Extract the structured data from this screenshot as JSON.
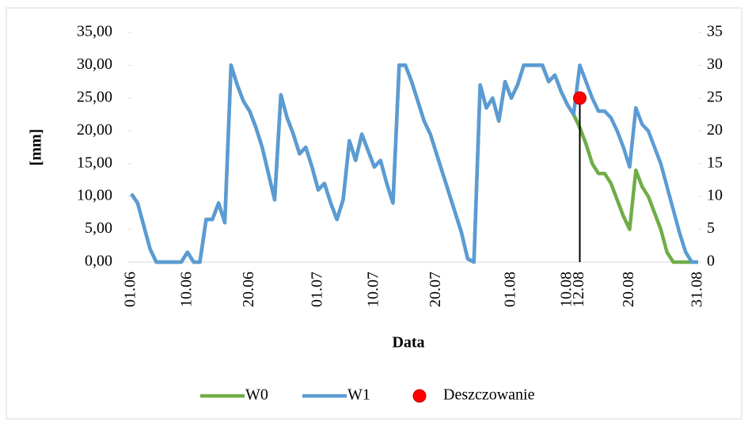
{
  "chart_data": {
    "type": "line",
    "ylabel": "[mm]",
    "xlabel": "Data",
    "categories": [
      "01.06",
      null,
      null,
      null,
      null,
      null,
      null,
      null,
      null,
      "10.06",
      null,
      null,
      null,
      null,
      null,
      null,
      null,
      null,
      null,
      "20.06",
      null,
      null,
      null,
      null,
      null,
      null,
      null,
      null,
      null,
      null,
      "01.07",
      null,
      null,
      null,
      null,
      null,
      null,
      null,
      null,
      "10.07",
      null,
      null,
      null,
      null,
      null,
      null,
      null,
      null,
      null,
      "20.07",
      null,
      null,
      null,
      null,
      null,
      null,
      null,
      null,
      null,
      null,
      null,
      "01.08",
      null,
      null,
      null,
      null,
      null,
      null,
      null,
      null,
      "10.08",
      null,
      "12.08",
      null,
      null,
      null,
      null,
      null,
      null,
      null,
      "20.08",
      null,
      null,
      null,
      null,
      null,
      null,
      null,
      null,
      null,
      null,
      "31.08"
    ],
    "series": [
      {
        "name": "W0",
        "color": "#70ad47",
        "values": [
          10.4,
          9,
          5.5,
          2,
          0,
          0,
          0,
          0,
          0,
          1.5,
          0,
          0,
          6.5,
          6.5,
          9,
          6,
          30,
          27,
          24.5,
          23,
          20.5,
          17.5,
          13.5,
          9.5,
          25.5,
          22,
          19.5,
          16.5,
          17.5,
          14.5,
          11,
          12,
          9,
          6.5,
          9.5,
          18.5,
          15.5,
          19.5,
          17,
          14.5,
          15.5,
          12,
          9,
          30,
          30,
          27.5,
          24.5,
          21.5,
          19.5,
          16.5,
          13.5,
          10.5,
          7.5,
          4.5,
          0.5,
          0,
          27,
          23.5,
          25,
          21.5,
          27.5,
          25,
          27,
          30,
          30,
          30,
          30,
          27.5,
          28.5,
          26,
          24,
          22.5,
          20.5,
          18,
          15,
          13.5,
          13.5,
          12,
          9.5,
          7,
          5,
          14,
          11.5,
          10,
          7.5,
          5,
          1.5,
          0,
          0,
          0,
          0,
          0
        ]
      },
      {
        "name": "W1",
        "color": "#5b9bd5",
        "values": [
          10.4,
          9,
          5.5,
          2,
          0,
          0,
          0,
          0,
          0,
          1.5,
          0,
          0,
          6.5,
          6.5,
          9,
          6,
          30,
          27,
          24.5,
          23,
          20.5,
          17.5,
          13.5,
          9.5,
          25.5,
          22,
          19.5,
          16.5,
          17.5,
          14.5,
          11,
          12,
          9,
          6.5,
          9.5,
          18.5,
          15.5,
          19.5,
          17,
          14.5,
          15.5,
          12,
          9,
          30,
          30,
          27.5,
          24.5,
          21.5,
          19.5,
          16.5,
          13.5,
          10.5,
          7.5,
          4.5,
          0.5,
          0,
          27,
          23.5,
          25,
          21.5,
          27.5,
          25,
          27,
          30,
          30,
          30,
          30,
          27.5,
          28.5,
          26,
          24,
          22.5,
          30,
          27.5,
          25,
          23,
          23,
          22,
          20,
          17.5,
          14.5,
          23.5,
          21,
          20,
          17.5,
          15,
          11.5,
          8,
          4.5,
          1.5,
          0,
          0
        ]
      },
      {
        "name": "Deszczowanie",
        "color": "#ff0000",
        "marker": "point",
        "values": [
          null,
          null,
          null,
          null,
          null,
          null,
          null,
          null,
          null,
          null,
          null,
          null,
          null,
          null,
          null,
          null,
          null,
          null,
          null,
          null,
          null,
          null,
          null,
          null,
          null,
          null,
          null,
          null,
          null,
          null,
          null,
          null,
          null,
          null,
          null,
          null,
          null,
          null,
          null,
          null,
          null,
          null,
          null,
          null,
          null,
          null,
          null,
          null,
          null,
          null,
          null,
          null,
          null,
          null,
          null,
          null,
          null,
          null,
          null,
          null,
          null,
          null,
          null,
          null,
          null,
          null,
          null,
          null,
          null,
          null,
          null,
          null,
          25,
          null,
          null,
          null,
          null,
          null,
          null,
          null,
          null,
          null,
          null,
          null,
          null,
          null,
          null,
          null,
          null,
          null,
          null,
          null
        ]
      }
    ],
    "ylim": [
      0,
      35
    ],
    "yticks": [
      {
        "value": 0,
        "label": "0,00"
      },
      {
        "value": 5,
        "label": "5,00"
      },
      {
        "value": 10,
        "label": "10,00"
      },
      {
        "value": 15,
        "label": "15,00"
      },
      {
        "value": 20,
        "label": "20,00"
      },
      {
        "value": 25,
        "label": "25,00"
      },
      {
        "value": 30,
        "label": "30,00"
      },
      {
        "value": 35,
        "label": "35,00"
      }
    ],
    "y2lim": [
      0,
      35
    ],
    "y2ticks": [
      0,
      5,
      10,
      15,
      20,
      25,
      30,
      35
    ],
    "grid": false,
    "legend": "bottom"
  }
}
